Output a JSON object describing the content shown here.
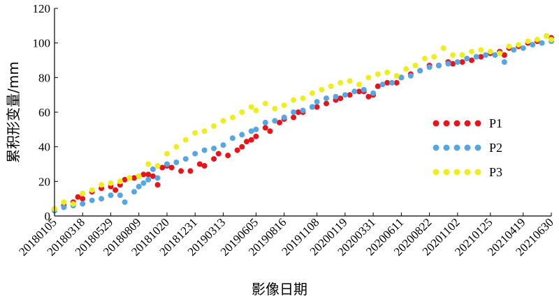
{
  "chart_data": {
    "type": "scatter",
    "title": "",
    "xlabel": "影像日期",
    "ylabel": "累积形变量/mm",
    "ylim": [
      0,
      120
    ],
    "yticks": [
      0,
      20,
      40,
      60,
      80,
      100,
      120
    ],
    "xlim": [
      "2018-01-05",
      "2021-06-30"
    ],
    "xticks": [
      {
        "date": "2018-01-05",
        "label": "20180105"
      },
      {
        "date": "2018-03-18",
        "label": "20180318"
      },
      {
        "date": "2018-05-29",
        "label": "20180529"
      },
      {
        "date": "2018-08-09",
        "label": "20180809"
      },
      {
        "date": "2018-10-20",
        "label": "20181020"
      },
      {
        "date": "2018-12-31",
        "label": "20181231"
      },
      {
        "date": "2019-03-13",
        "label": "20190313"
      },
      {
        "date": "2019-06-05",
        "label": "20190605"
      },
      {
        "date": "2019-08-16",
        "label": "20190816"
      },
      {
        "date": "2019-11-08",
        "label": "20191108"
      },
      {
        "date": "2020-01-19",
        "label": "20200119"
      },
      {
        "date": "2020-03-31",
        "label": "20200331"
      },
      {
        "date": "2020-06-11",
        "label": "20200611"
      },
      {
        "date": "2020-08-22",
        "label": "20200822"
      },
      {
        "date": "2020-11-02",
        "label": "20201102"
      },
      {
        "date": "2021-01-25",
        "label": "20210125"
      },
      {
        "date": "2021-04-19",
        "label": "20210419"
      },
      {
        "date": "2021-06-30",
        "label": "20210630"
      }
    ],
    "legend_position": "right-center",
    "series": [
      {
        "name": "P1",
        "color": "#e8141c",
        "points": [
          [
            "2018-01-05",
            4
          ],
          [
            "2018-01-29",
            6
          ],
          [
            "2018-02-22",
            8
          ],
          [
            "2018-03-06",
            11
          ],
          [
            "2018-03-18",
            10
          ],
          [
            "2018-04-11",
            14
          ],
          [
            "2018-05-05",
            16
          ],
          [
            "2018-05-29",
            17
          ],
          [
            "2018-06-10",
            15
          ],
          [
            "2018-06-22",
            18
          ],
          [
            "2018-07-04",
            21
          ],
          [
            "2018-07-28",
            22
          ],
          [
            "2018-08-09",
            23
          ],
          [
            "2018-08-21",
            24
          ],
          [
            "2018-09-02",
            24
          ],
          [
            "2018-09-14",
            23
          ],
          [
            "2018-09-26",
            18
          ],
          [
            "2018-10-08",
            28
          ],
          [
            "2018-10-20",
            29
          ],
          [
            "2018-11-01",
            28
          ],
          [
            "2018-11-25",
            26
          ],
          [
            "2018-12-19",
            26
          ],
          [
            "2019-01-12",
            30
          ],
          [
            "2019-01-24",
            29
          ],
          [
            "2019-02-17",
            33
          ],
          [
            "2019-03-01",
            36
          ],
          [
            "2019-03-25",
            35
          ],
          [
            "2019-04-18",
            38
          ],
          [
            "2019-04-30",
            40
          ],
          [
            "2019-05-12",
            43
          ],
          [
            "2019-05-24",
            44
          ],
          [
            "2019-06-05",
            46
          ],
          [
            "2019-06-29",
            51
          ],
          [
            "2019-07-11",
            49
          ],
          [
            "2019-08-04",
            54
          ],
          [
            "2019-08-16",
            56
          ],
          [
            "2019-09-09",
            57
          ],
          [
            "2019-09-21",
            60
          ],
          [
            "2019-10-03",
            60
          ],
          [
            "2019-10-27",
            63
          ],
          [
            "2019-11-08",
            63
          ],
          [
            "2019-12-02",
            65
          ],
          [
            "2019-12-26",
            67
          ],
          [
            "2020-01-07",
            68
          ],
          [
            "2020-01-31",
            70
          ],
          [
            "2020-02-24",
            72
          ],
          [
            "2020-03-07",
            72
          ],
          [
            "2020-03-19",
            69
          ],
          [
            "2020-03-31",
            70
          ],
          [
            "2020-04-12",
            75
          ],
          [
            "2020-05-06",
            77
          ],
          [
            "2020-05-30",
            77
          ],
          [
            "2020-06-11",
            80
          ],
          [
            "2020-07-05",
            82
          ],
          [
            "2020-07-29",
            84
          ],
          [
            "2020-08-22",
            87
          ],
          [
            "2020-09-15",
            87
          ],
          [
            "2020-10-09",
            89
          ],
          [
            "2020-10-21",
            88
          ],
          [
            "2020-11-14",
            89
          ],
          [
            "2020-12-08",
            90
          ],
          [
            "2021-01-01",
            92
          ],
          [
            "2021-01-25",
            94
          ],
          [
            "2021-02-18",
            95
          ],
          [
            "2021-03-02",
            93
          ],
          [
            "2021-03-14",
            97
          ],
          [
            "2021-04-07",
            98
          ],
          [
            "2021-05-01",
            100
          ],
          [
            "2021-05-25",
            101
          ],
          [
            "2021-06-18",
            104
          ],
          [
            "2021-06-30",
            103
          ]
        ]
      },
      {
        "name": "P2",
        "color": "#55a6e4",
        "points": [
          [
            "2018-01-05",
            3
          ],
          [
            "2018-01-29",
            5
          ],
          [
            "2018-02-22",
            6
          ],
          [
            "2018-03-18",
            7
          ],
          [
            "2018-04-11",
            9
          ],
          [
            "2018-05-05",
            10
          ],
          [
            "2018-05-29",
            12
          ],
          [
            "2018-06-22",
            12
          ],
          [
            "2018-07-04",
            8
          ],
          [
            "2018-07-28",
            14
          ],
          [
            "2018-08-09",
            17
          ],
          [
            "2018-08-21",
            19
          ],
          [
            "2018-09-02",
            21
          ],
          [
            "2018-09-14",
            27
          ],
          [
            "2018-09-26",
            22
          ],
          [
            "2018-10-20",
            30
          ],
          [
            "2018-11-13",
            31
          ],
          [
            "2018-12-07",
            33
          ],
          [
            "2018-12-31",
            36
          ],
          [
            "2019-01-24",
            38
          ],
          [
            "2019-02-17",
            39
          ],
          [
            "2019-03-13",
            41
          ],
          [
            "2019-04-06",
            45
          ],
          [
            "2019-04-30",
            47
          ],
          [
            "2019-05-24",
            49
          ],
          [
            "2019-06-05",
            50
          ],
          [
            "2019-06-29",
            54
          ],
          [
            "2019-07-23",
            55
          ],
          [
            "2019-08-16",
            57
          ],
          [
            "2019-09-09",
            60
          ],
          [
            "2019-10-03",
            61
          ],
          [
            "2019-10-27",
            63
          ],
          [
            "2019-11-08",
            66
          ],
          [
            "2019-12-02",
            68
          ],
          [
            "2019-12-26",
            69
          ],
          [
            "2020-01-19",
            70
          ],
          [
            "2020-02-12",
            72
          ],
          [
            "2020-03-07",
            73
          ],
          [
            "2020-03-31",
            71
          ],
          [
            "2020-04-24",
            76
          ],
          [
            "2020-05-18",
            77
          ],
          [
            "2020-06-11",
            80
          ],
          [
            "2020-07-05",
            81
          ],
          [
            "2020-07-29",
            84
          ],
          [
            "2020-08-22",
            86
          ],
          [
            "2020-09-15",
            87
          ],
          [
            "2020-10-09",
            88
          ],
          [
            "2020-11-02",
            89
          ],
          [
            "2020-11-26",
            91
          ],
          [
            "2020-12-20",
            92
          ],
          [
            "2021-01-13",
            93
          ],
          [
            "2021-02-06",
            93
          ],
          [
            "2021-03-02",
            89
          ],
          [
            "2021-03-26",
            96
          ],
          [
            "2021-04-19",
            97
          ],
          [
            "2021-05-13",
            99
          ],
          [
            "2021-06-06",
            100
          ],
          [
            "2021-06-30",
            101
          ]
        ]
      },
      {
        "name": "P3",
        "color": "#eeee1c",
        "points": [
          [
            "2018-01-05",
            4
          ],
          [
            "2018-01-29",
            8
          ],
          [
            "2018-02-22",
            7
          ],
          [
            "2018-03-18",
            13
          ],
          [
            "2018-04-11",
            15
          ],
          [
            "2018-05-05",
            18
          ],
          [
            "2018-05-29",
            19
          ],
          [
            "2018-06-22",
            20
          ],
          [
            "2018-07-16",
            22
          ],
          [
            "2018-08-09",
            23
          ],
          [
            "2018-09-02",
            30
          ],
          [
            "2018-09-26",
            29
          ],
          [
            "2018-10-20",
            36
          ],
          [
            "2018-11-13",
            40
          ],
          [
            "2018-12-07",
            44
          ],
          [
            "2018-12-31",
            48
          ],
          [
            "2019-01-24",
            49
          ],
          [
            "2019-02-17",
            52
          ],
          [
            "2019-03-13",
            55
          ],
          [
            "2019-04-06",
            57
          ],
          [
            "2019-04-30",
            60
          ],
          [
            "2019-05-24",
            63
          ],
          [
            "2019-06-05",
            61
          ],
          [
            "2019-06-29",
            65
          ],
          [
            "2019-07-23",
            62
          ],
          [
            "2019-08-16",
            64
          ],
          [
            "2019-09-09",
            67
          ],
          [
            "2019-10-03",
            68
          ],
          [
            "2019-10-27",
            71
          ],
          [
            "2019-11-20",
            73
          ],
          [
            "2019-12-14",
            75
          ],
          [
            "2020-01-07",
            77
          ],
          [
            "2020-01-31",
            78
          ],
          [
            "2020-02-24",
            76
          ],
          [
            "2020-03-19",
            80
          ],
          [
            "2020-04-12",
            82
          ],
          [
            "2020-05-06",
            83
          ],
          [
            "2020-05-30",
            81
          ],
          [
            "2020-06-23",
            85
          ],
          [
            "2020-07-17",
            87
          ],
          [
            "2020-08-10",
            91
          ],
          [
            "2020-09-03",
            92
          ],
          [
            "2020-09-27",
            97
          ],
          [
            "2020-10-21",
            93
          ],
          [
            "2020-11-14",
            93
          ],
          [
            "2020-12-08",
            95
          ],
          [
            "2021-01-01",
            96
          ],
          [
            "2021-01-25",
            95
          ],
          [
            "2021-02-18",
            94
          ],
          [
            "2021-03-14",
            98
          ],
          [
            "2021-04-07",
            99
          ],
          [
            "2021-05-01",
            101
          ],
          [
            "2021-05-25",
            102
          ],
          [
            "2021-06-18",
            104
          ],
          [
            "2021-06-30",
            102
          ]
        ]
      }
    ]
  }
}
